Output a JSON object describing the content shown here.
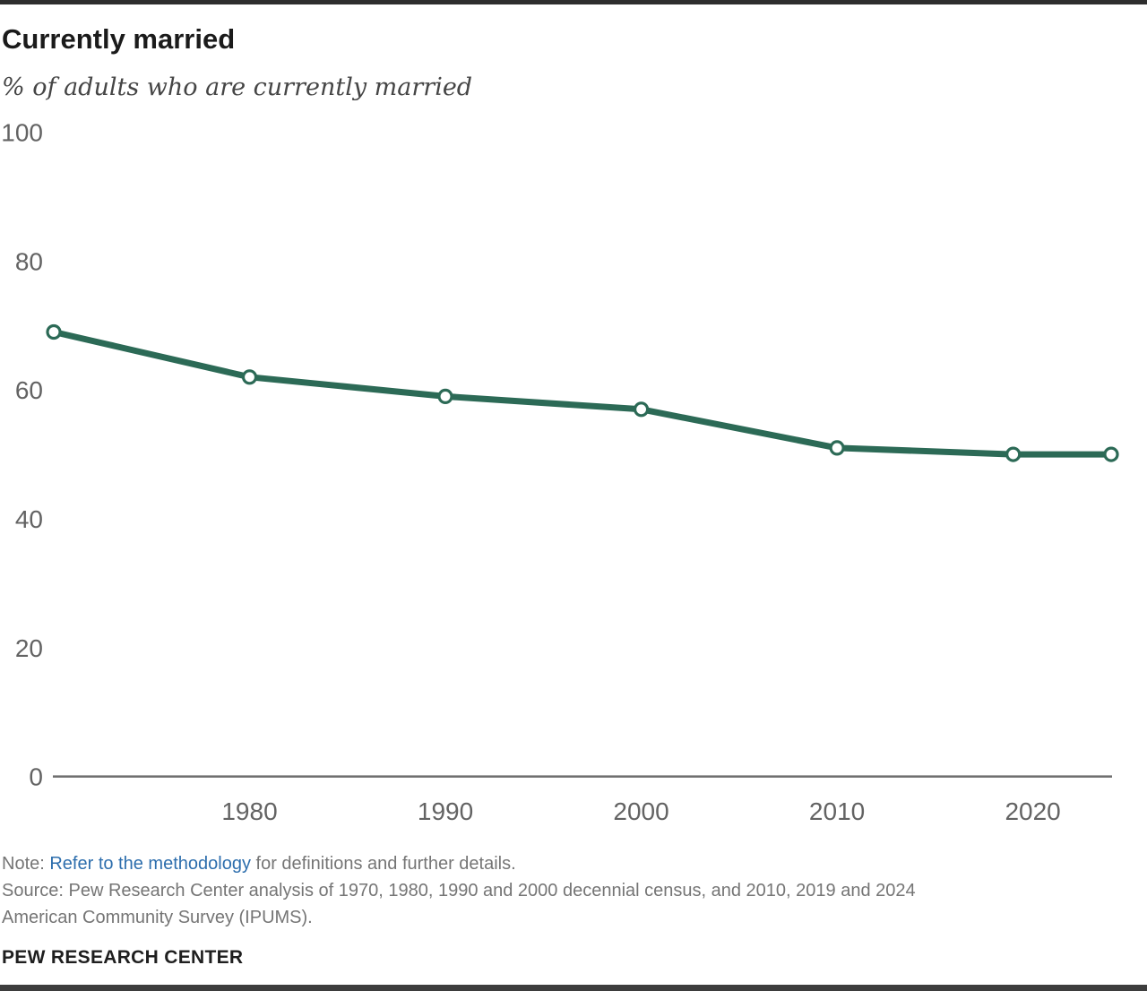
{
  "header": {
    "title": "Currently married",
    "subtitle": "% of adults who are currently married"
  },
  "chart_data": {
    "type": "line",
    "title": "Currently married",
    "subtitle": "% of adults who are currently married",
    "x": [
      1970,
      1980,
      1990,
      2000,
      2010,
      2019,
      2024
    ],
    "series": [
      {
        "name": "Currently married",
        "values": [
          69,
          62,
          59,
          57,
          51,
          50,
          50
        ]
      }
    ],
    "xlim": [
      1970,
      2024
    ],
    "ylim": [
      0,
      100
    ],
    "yticks": [
      0,
      20,
      40,
      60,
      80,
      100
    ],
    "xticks": [
      1980,
      1990,
      2000,
      2010,
      2020
    ],
    "grid": false,
    "legend": "none",
    "line_color": "#2C6A56",
    "marker": "open-circle"
  },
  "footer": {
    "note_label": "Note: ",
    "note_link": "Refer to the methodology",
    "note_rest": " for definitions and further details.",
    "source_line1": "Source: Pew Research Center analysis of 1970, 1980, 1990 and 2000 decennial census, and 2010, 2019 and 2024",
    "source_line2": "American Community Survey (IPUMS).",
    "brand": "PEW RESEARCH CENTER"
  },
  "colors": {
    "line": "#2C6A56",
    "marker_fill": "#ffffff",
    "axis": "#6e6e6e",
    "tick_text": "#636363",
    "title_text": "#1b1b1b",
    "subtitle_text": "#454545",
    "note_text": "#757575",
    "link": "#2D6EAD",
    "border_top": "#2e2e2e",
    "border_bottom": "#3d3d3d"
  }
}
